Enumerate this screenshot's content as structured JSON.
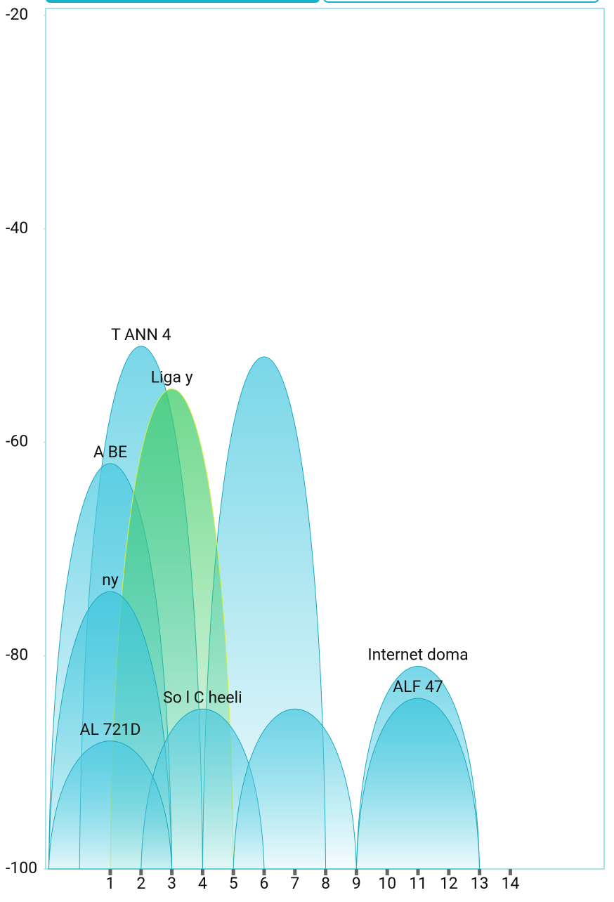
{
  "chart_data": {
    "type": "channel",
    "xlim": [
      -1.1,
      17.05
    ],
    "ylim": [
      -100,
      -20
    ],
    "xticks": [
      1,
      2,
      3,
      4,
      5,
      6,
      7,
      8,
      9,
      10,
      11,
      12,
      13,
      14
    ],
    "yticks": [
      -20,
      -40,
      -60,
      -80,
      -100
    ],
    "grid": false,
    "series": [
      {
        "name": "T ANN 4",
        "color": "#4cc9e0",
        "x": 2,
        "value": -51
      },
      {
        "color": "#4cc9e0",
        "x": 6,
        "value": -52
      },
      {
        "name": "A BE",
        "color": "#4cc9e0",
        "x": 1,
        "value": -62
      },
      {
        "name": "Liga y",
        "color": "#3fcc66",
        "x": 3,
        "value": -55
      },
      {
        "name": "ny",
        "color": "#3cc5dc",
        "x": 1,
        "value": -74
      },
      {
        "name": "Internet doma",
        "color": "#4cc9e0",
        "x": 11,
        "value": -81
      },
      {
        "name": "ALF 47",
        "color": "#3cc5dc",
        "x": 11,
        "value": -84
      },
      {
        "name": "So l C heeli",
        "color": "#4cc9e0",
        "x": 4,
        "value": -85
      },
      {
        "color": "#4cc9e0",
        "x": 7,
        "value": -85
      },
      {
        "name": "AL 721D",
        "color": "#4cc9e0",
        "x": 1,
        "value": -88
      }
    ]
  }
}
